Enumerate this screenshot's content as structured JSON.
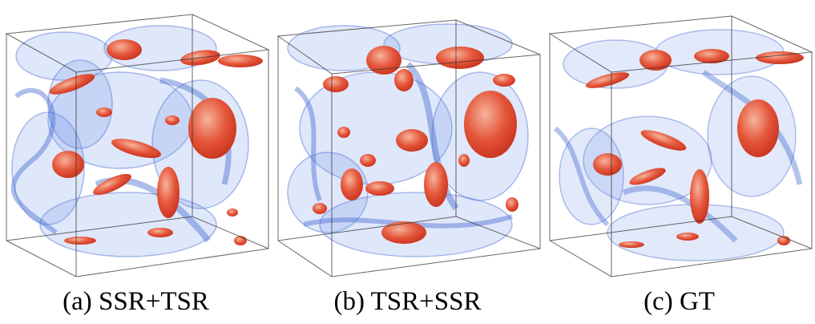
{
  "figure": {
    "panels": [
      {
        "id": "a",
        "caption": "(a) SSR+TSR"
      },
      {
        "id": "b",
        "caption": "(b) TSR+SSR"
      },
      {
        "id": "c",
        "caption": "(c) GT"
      }
    ],
    "colors": {
      "blue_isosurface": "#6f93e6",
      "blue_edge": "#4b6fd2",
      "red_isosurface": "#e04a2c",
      "red_highlight": "#f5a58c",
      "box_edge": "#333333"
    }
  }
}
